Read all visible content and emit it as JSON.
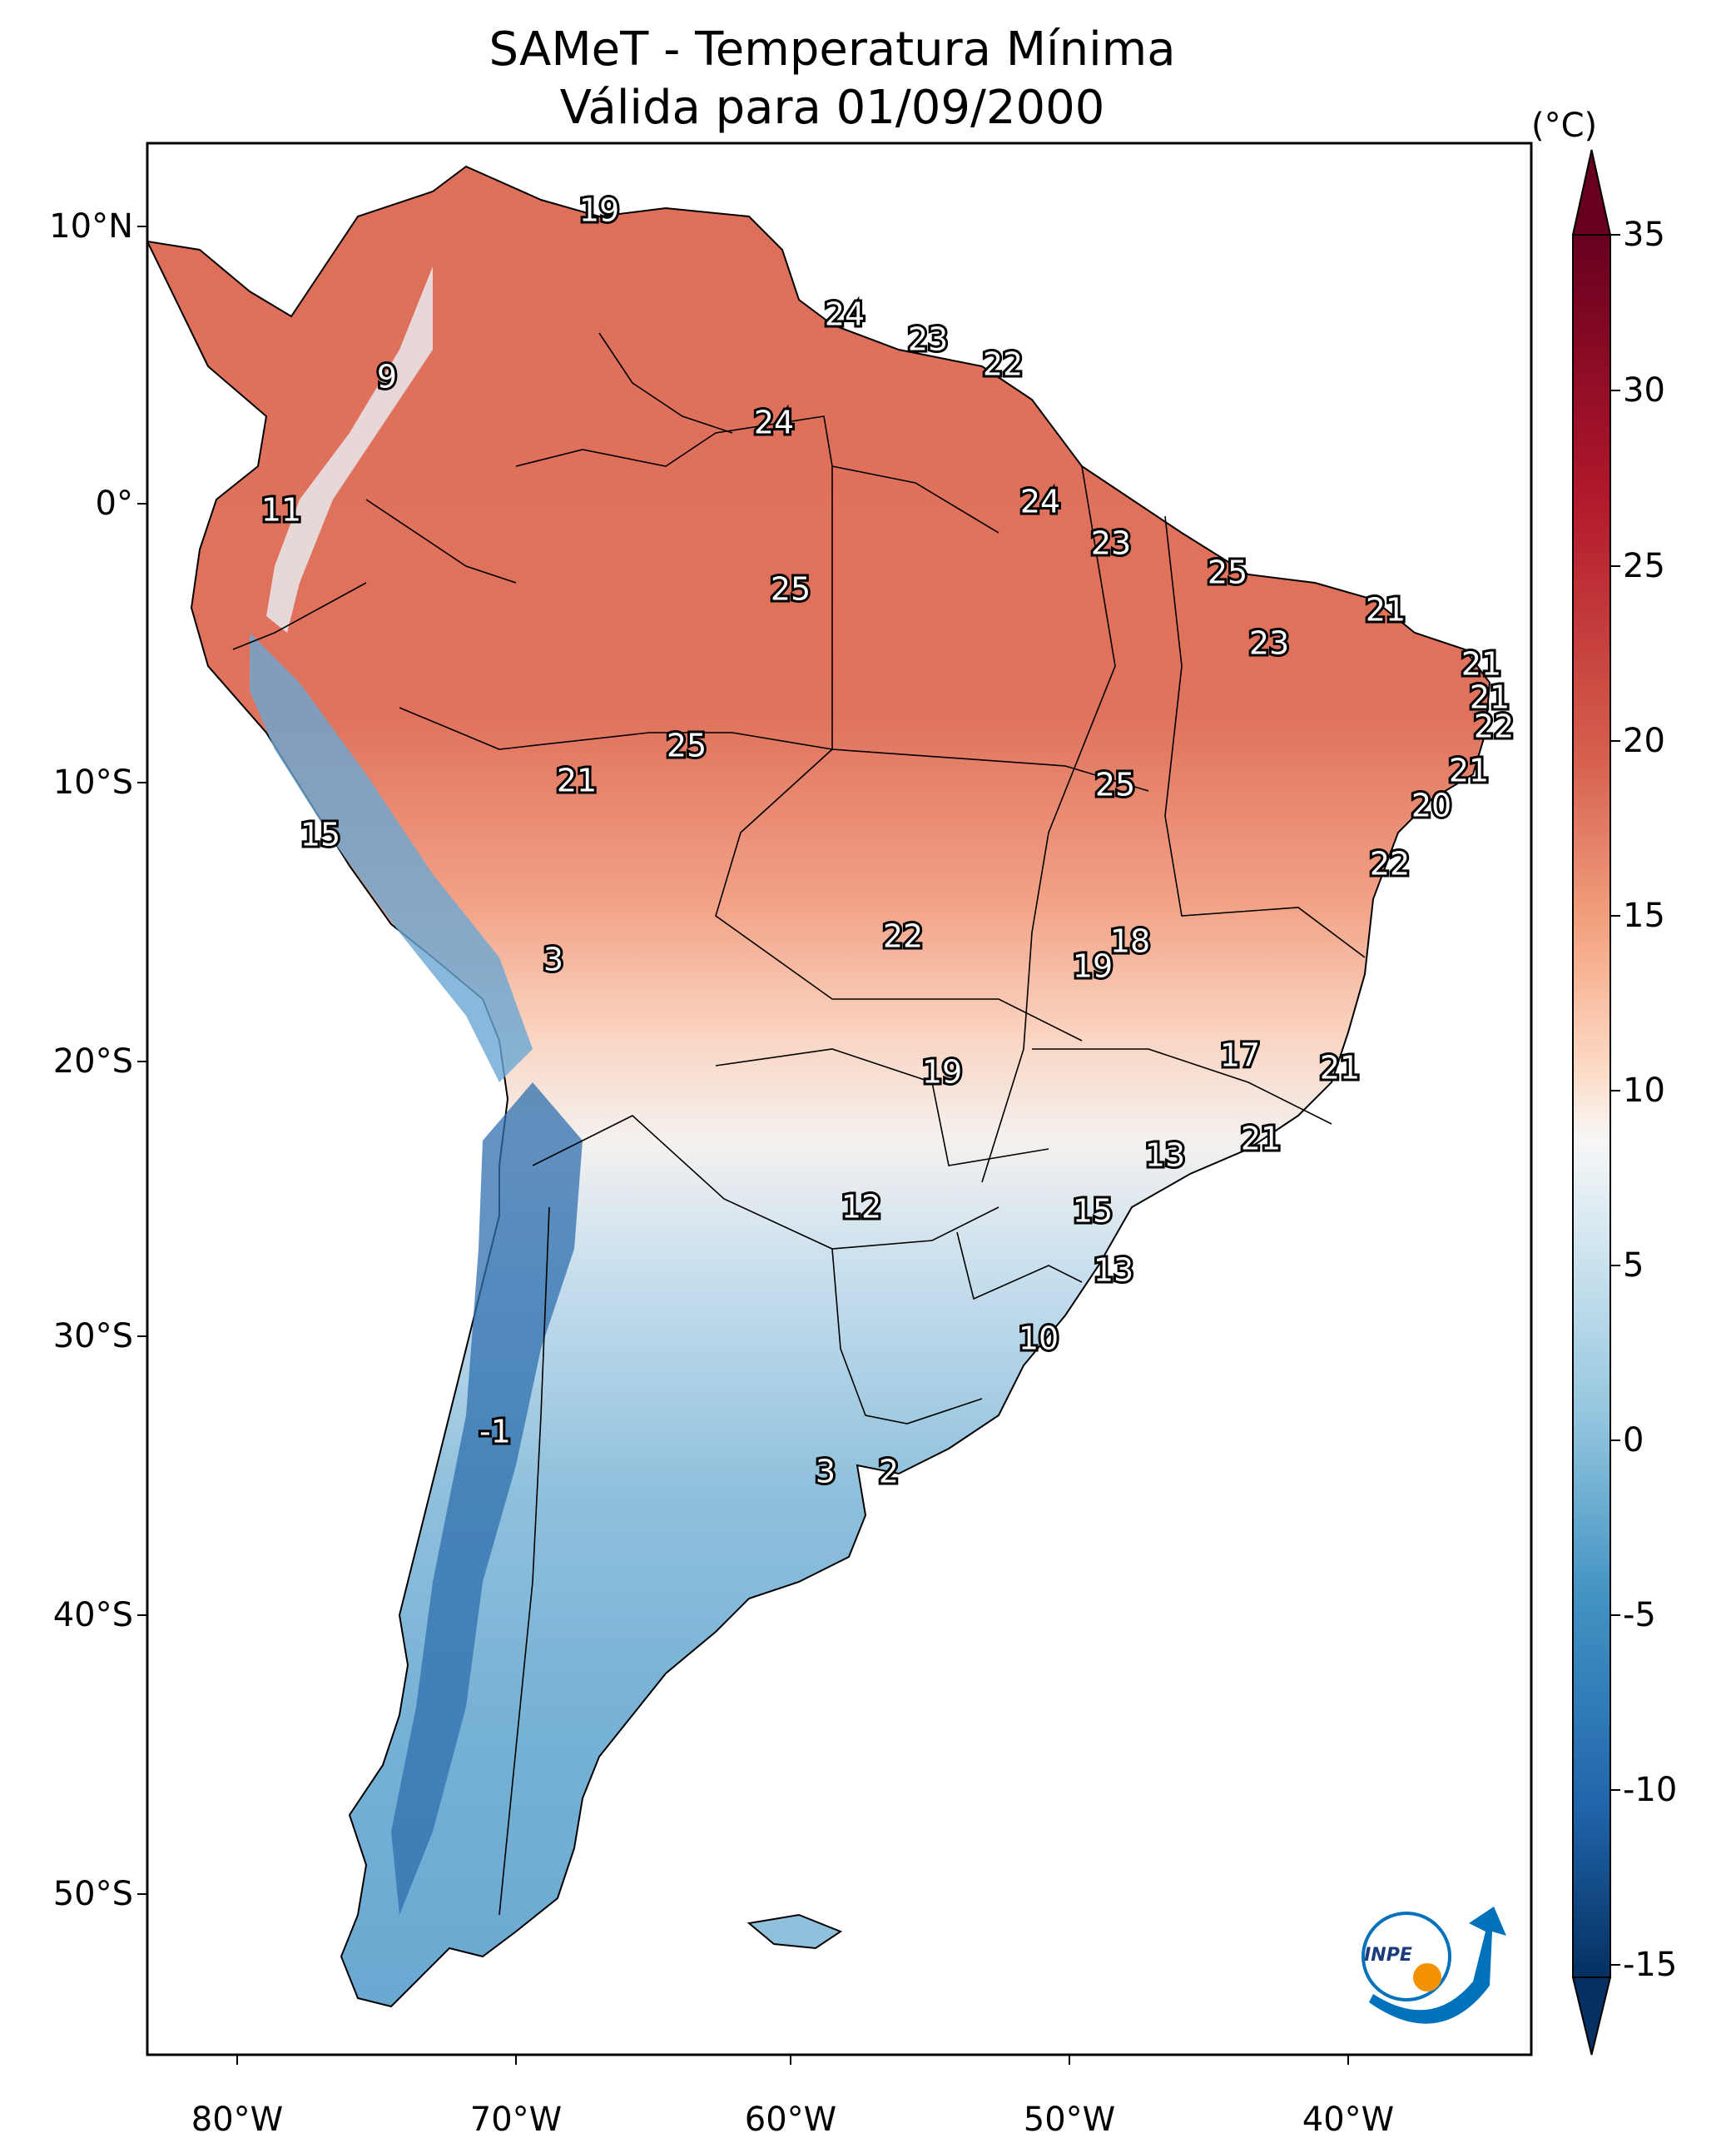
{
  "title": {
    "line1": "SAMeT - Temperatura Mínima",
    "line2": "Válida para 01/09/2000"
  },
  "axes": {
    "latitude_ticks": [
      "10°N",
      "0°",
      "10°S",
      "20°S",
      "30°S",
      "40°S",
      "50°S"
    ],
    "longitude_ticks": [
      "80°W",
      "70°W",
      "60°W",
      "50°W",
      "40°W"
    ]
  },
  "colorbar": {
    "unit": "(°C)",
    "ticks": [
      "35",
      "30",
      "25",
      "20",
      "15",
      "10",
      "5",
      "0",
      "-5",
      "-10",
      "-15"
    ],
    "colors": {
      "warm_dark": "#67001f",
      "warm": "#d6604d",
      "warm_light": "#f4a582",
      "neutral": "#f7f7f7",
      "cool_light": "#92c5de",
      "cool": "#4393c3",
      "cool_dark": "#053061"
    }
  },
  "stations": [
    "19",
    "24",
    "23",
    "22",
    "9",
    "24",
    "24",
    "11",
    "23",
    "25",
    "25",
    "21",
    "23",
    "21",
    "21",
    "22",
    "25",
    "21",
    "25",
    "21",
    "20",
    "15",
    "22",
    "18",
    "3",
    "22",
    "19",
    "17",
    "21",
    "19",
    "13",
    "21",
    "12",
    "15",
    "13",
    "10",
    "-1",
    "3",
    "2"
  ],
  "logo": {
    "text": "INPE"
  }
}
